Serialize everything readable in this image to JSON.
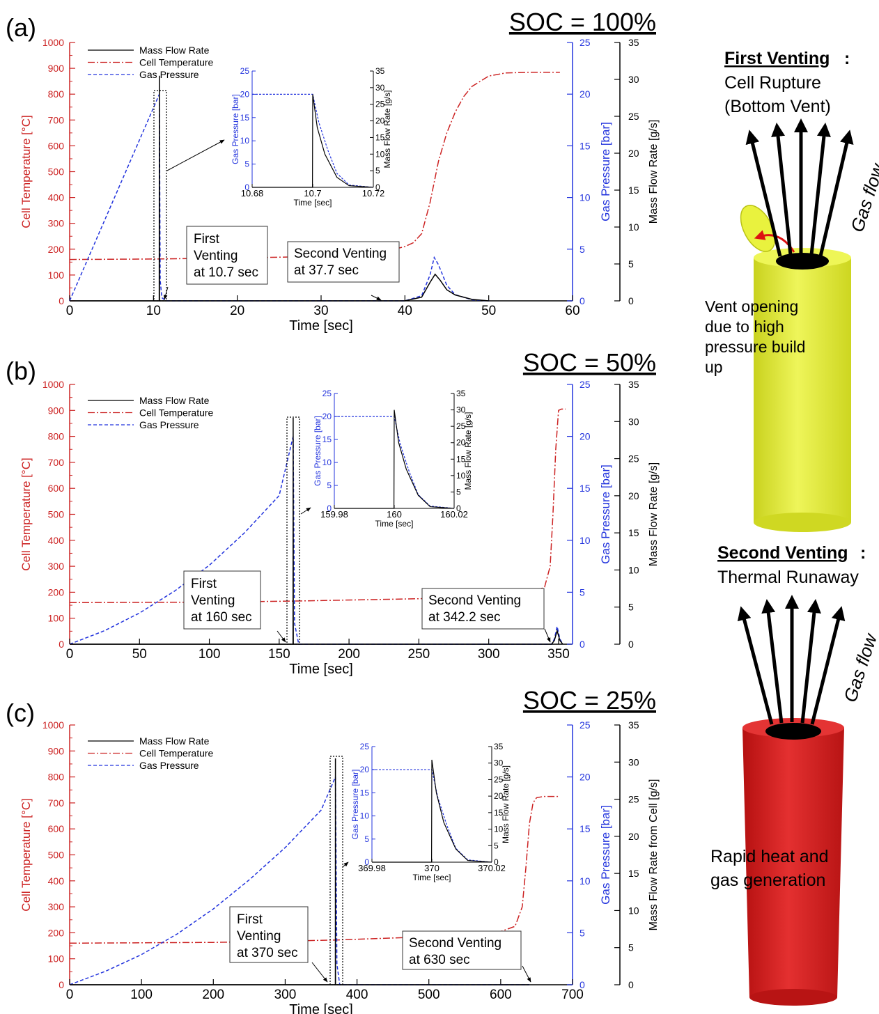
{
  "panels": [
    {
      "tag": "(a)",
      "soc": "SOC = 100%",
      "xlabel": "Time [sec]",
      "ylabel_temp": "Cell Temperature [°C]",
      "ylabel_press": "Gas Pressure [bar]",
      "ylabel_mfr": "Mass Flow Rate [g/s]",
      "legend": [
        "Mass Flow Rate",
        "Cell Temperature",
        "Gas Pressure"
      ],
      "first_venting": [
        "First",
        "Venting",
        "at 10.7 sec"
      ],
      "second_venting": [
        "Second Venting",
        "at 37.7 sec"
      ],
      "inset": {
        "xticks": [
          "10.68",
          "10.7",
          "10.72"
        ],
        "xlabel": "Time [sec]",
        "ylabel_press": "Gas Pressure [bar]",
        "ylabel_mfr": "Mass Flow Rate [g/s]"
      }
    },
    {
      "tag": "(b)",
      "soc": "SOC = 50%",
      "xlabel": "Time [sec]",
      "ylabel_temp": "Cell Temperature [°C]",
      "ylabel_press": "Gas Pressure [bar]",
      "ylabel_mfr": "Mass Flow Rate [g/s]",
      "legend": [
        "Mass Flow Rate",
        "Cell Temperature",
        "Gas Pressure"
      ],
      "first_venting": [
        "First",
        "Venting",
        "at 160 sec"
      ],
      "second_venting": [
        "Second Venting",
        "at 342.2 sec"
      ],
      "inset": {
        "xticks": [
          "159.98",
          "160",
          "160.02"
        ],
        "xlabel": "Time [sec]",
        "ylabel_press": "Gas Pressure [bar]",
        "ylabel_mfr": "Mass Flow Rate [g/s]"
      }
    },
    {
      "tag": "(c)",
      "soc": "SOC = 25%",
      "xlabel": "Time [sec]",
      "ylabel_temp": "Cell Temperature [°C]",
      "ylabel_press": "Gas Pressure [bar]",
      "ylabel_mfr": "Mass Flow Rate from Cell [g/s]",
      "legend": [
        "Mass Flow Rate",
        "Cell Temperature",
        "Gas Pressure"
      ],
      "first_venting": [
        "First",
        "Venting",
        "at 370 sec"
      ],
      "second_venting": [
        "Second Venting",
        "at 630 sec"
      ],
      "inset": {
        "xticks": [
          "369.98",
          "370",
          "370.02"
        ],
        "xlabel": "Time [sec]",
        "ylabel_press": "Gas Pressure [bar]",
        "ylabel_mfr": "Mass Flow Rate [g/s]"
      }
    }
  ],
  "schematic": {
    "first_title": "First Venting",
    "first_colon": ":",
    "first_sub": [
      "Cell Rupture",
      "(Bottom Vent)"
    ],
    "gas_flow": "Gas flow",
    "vent_note": [
      "Vent opening",
      "due to high",
      "pressure build",
      "up"
    ],
    "second_title": "Second Venting",
    "second_colon": ":",
    "second_sub": "Thermal Runaway",
    "heat_note": [
      "Rapid heat and",
      "gas generation"
    ],
    "colors": {
      "cell_yellow": "#e4ee2c",
      "cell_red": "#dd1c1c"
    }
  },
  "chart_data": [
    {
      "type": "line",
      "title": "SOC = 100%",
      "xlabel": "Time [sec]",
      "xlim": [
        0,
        60
      ],
      "xticks": [
        0,
        10,
        20,
        30,
        40,
        50,
        60
      ],
      "axes": {
        "temperature": {
          "label": "Cell Temperature [°C]",
          "lim": [
            0,
            1000
          ],
          "color": "#cc2222"
        },
        "pressure": {
          "label": "Gas Pressure [bar]",
          "lim": [
            0,
            25
          ],
          "color": "#2233dd"
        },
        "mass_flow": {
          "label": "Mass Flow Rate [g/s]",
          "lim": [
            0,
            35
          ],
          "color": "#000000"
        }
      },
      "legend_position": "top-left",
      "series": [
        {
          "name": "Cell Temperature",
          "axis": "temperature",
          "style": "dash-dot",
          "color": "#cc2222",
          "x": [
            0,
            10,
            20,
            30,
            38,
            40,
            41,
            42,
            43,
            44,
            45,
            46,
            47,
            48,
            50,
            52,
            55,
            58.5
          ],
          "y": [
            160,
            162,
            166,
            172,
            195,
            210,
            225,
            260,
            380,
            540,
            650,
            730,
            790,
            830,
            870,
            882,
            885,
            885
          ]
        },
        {
          "name": "Gas Pressure",
          "axis": "pressure",
          "style": "dashed",
          "color": "#2233dd",
          "x": [
            0,
            10.7,
            10.7,
            10.8,
            11,
            11.5,
            40,
            42,
            43,
            43.5,
            44,
            45,
            46,
            48,
            50
          ],
          "y": [
            0,
            20,
            20,
            2,
            0.3,
            0,
            0,
            0.5,
            2.5,
            4.2,
            3.5,
            1.5,
            0.6,
            0.1,
            0
          ]
        },
        {
          "name": "Mass Flow Rate",
          "axis": "mass_flow",
          "style": "solid",
          "color": "#000000",
          "x": [
            0,
            10.69,
            10.7,
            10.72,
            10.8,
            40,
            42,
            43,
            43.6,
            44.2,
            45,
            46,
            48,
            50
          ],
          "y": [
            0,
            0,
            30.5,
            0,
            0,
            0,
            0.5,
            2.5,
            3.6,
            2.8,
            1.5,
            0.8,
            0.2,
            0
          ]
        }
      ],
      "annotations": [
        "First Venting at 10.7 sec",
        "Second Venting at 37.7 sec"
      ],
      "inset": {
        "xlim": [
          10.68,
          10.72
        ],
        "xticks": [
          10.68,
          10.7,
          10.72
        ],
        "pressure_lim": [
          0,
          25
        ],
        "mass_flow_lim": [
          0,
          35
        ],
        "pressure": {
          "x": [
            10.68,
            10.7,
            10.7,
            10.702,
            10.705,
            10.708,
            10.712,
            10.72
          ],
          "y": [
            20,
            20,
            20,
            14,
            8,
            3,
            0.5,
            0
          ]
        },
        "mass_flow": {
          "x": [
            10.68,
            10.6999,
            10.7,
            10.7015,
            10.704,
            10.708,
            10.712,
            10.72
          ],
          "y": [
            0,
            0,
            28,
            18,
            10,
            3,
            0.5,
            0
          ]
        }
      }
    },
    {
      "type": "line",
      "title": "SOC = 50%",
      "xlabel": "Time [sec]",
      "xlim": [
        0,
        360
      ],
      "xticks": [
        0,
        50,
        100,
        150,
        200,
        250,
        300,
        350
      ],
      "axes": {
        "temperature": {
          "label": "Cell Temperature [°C]",
          "lim": [
            0,
            1000
          ],
          "color": "#cc2222"
        },
        "pressure": {
          "label": "Gas Pressure [bar]",
          "lim": [
            0,
            25
          ],
          "color": "#2233dd"
        },
        "mass_flow": {
          "label": "Mass Flow Rate [g/s]",
          "lim": [
            0,
            35
          ],
          "color": "#000000"
        }
      },
      "legend_position": "top-left",
      "series": [
        {
          "name": "Cell Temperature",
          "axis": "temperature",
          "style": "dash-dot",
          "color": "#cc2222",
          "x": [
            0,
            100,
            160,
            250,
            330,
            340,
            344,
            346,
            348,
            350,
            352,
            355
          ],
          "y": [
            160,
            162,
            166,
            175,
            195,
            220,
            300,
            500,
            750,
            900,
            905,
            905
          ]
        },
        {
          "name": "Gas Pressure",
          "axis": "pressure",
          "style": "dashed",
          "color": "#2233dd",
          "x": [
            0,
            25,
            50,
            75,
            100,
            125,
            150,
            160,
            160,
            161,
            164,
            345,
            347,
            349,
            351,
            353
          ],
          "y": [
            0,
            1.3,
            3.0,
            5.1,
            7.6,
            10.7,
            14.3,
            20,
            20,
            2,
            0,
            0,
            0.5,
            1.7,
            0.5,
            0
          ]
        },
        {
          "name": "Mass Flow Rate",
          "axis": "mass_flow",
          "style": "solid",
          "color": "#000000",
          "x": [
            0,
            159.9,
            160,
            160.1,
            161,
            345,
            347,
            349,
            351,
            353
          ],
          "y": [
            0,
            0,
            30.5,
            0,
            0,
            0,
            0.5,
            1.8,
            0.5,
            0
          ]
        }
      ],
      "annotations": [
        "First Venting at 160 sec",
        "Second Venting at 342.2 sec"
      ],
      "inset": {
        "xlim": [
          159.98,
          160.02
        ],
        "xticks": [
          159.98,
          160,
          160.02
        ],
        "pressure_lim": [
          0,
          25
        ],
        "mass_flow_lim": [
          0,
          35
        ],
        "pressure": {
          "x": [
            159.98,
            160,
            160,
            160.002,
            160.005,
            160.008,
            160.012,
            160.02
          ],
          "y": [
            20,
            20,
            20,
            14,
            8,
            3,
            0.5,
            0
          ]
        },
        "mass_flow": {
          "x": [
            159.98,
            159.9999,
            160,
            160.0015,
            160.004,
            160.008,
            160.012,
            160.02
          ],
          "y": [
            0,
            0,
            30,
            20,
            12,
            4,
            0.5,
            0
          ]
        }
      }
    },
    {
      "type": "line",
      "title": "SOC = 25%",
      "xlabel": "Time [sec]",
      "xlim": [
        0,
        700
      ],
      "xticks": [
        0,
        100,
        200,
        300,
        400,
        500,
        600,
        700
      ],
      "axes": {
        "temperature": {
          "label": "Cell Temperature [°C]",
          "lim": [
            0,
            1000
          ],
          "color": "#cc2222"
        },
        "pressure": {
          "label": "Gas Pressure [bar]",
          "lim": [
            0,
            25
          ],
          "color": "#2233dd"
        },
        "mass_flow": {
          "label": "Mass Flow Rate from Cell [g/s]",
          "lim": [
            0,
            35
          ],
          "color": "#000000"
        }
      },
      "legend_position": "top-left",
      "series": [
        {
          "name": "Cell Temperature",
          "axis": "temperature",
          "style": "dash-dot",
          "color": "#cc2222",
          "x": [
            0,
            200,
            370,
            500,
            600,
            620,
            630,
            635,
            640,
            645,
            650,
            660,
            680
          ],
          "y": [
            160,
            163,
            172,
            185,
            205,
            225,
            300,
            450,
            620,
            700,
            720,
            725,
            725
          ]
        },
        {
          "name": "Gas Pressure",
          "axis": "pressure",
          "style": "dashed",
          "color": "#2233dd",
          "x": [
            0,
            50,
            100,
            150,
            200,
            250,
            300,
            350,
            370,
            370,
            372,
            376,
            640
          ],
          "y": [
            0,
            1.3,
            2.9,
            4.9,
            7.3,
            10.1,
            13.2,
            16.8,
            20,
            20,
            2,
            0,
            0
          ]
        },
        {
          "name": "Mass Flow Rate",
          "axis": "mass_flow",
          "style": "solid",
          "color": "#000000",
          "x": [
            0,
            369.9,
            370,
            370.1,
            372,
            640
          ],
          "y": [
            0,
            0,
            30.5,
            0,
            0,
            0
          ]
        }
      ],
      "annotations": [
        "First Venting at 370 sec",
        "Second Venting at 630 sec"
      ],
      "inset": {
        "xlim": [
          369.98,
          370.02
        ],
        "xticks": [
          369.98,
          370,
          370.02
        ],
        "pressure_lim": [
          0,
          25
        ],
        "mass_flow_lim": [
          0,
          35
        ],
        "pressure": {
          "x": [
            369.98,
            370,
            370,
            370.002,
            370.005,
            370.008,
            370.012,
            370.02
          ],
          "y": [
            20,
            20,
            20,
            14,
            8,
            3,
            0.5,
            0
          ]
        },
        "mass_flow": {
          "x": [
            369.98,
            369.9999,
            370,
            370.0015,
            370.004,
            370.008,
            370.012,
            370.02
          ],
          "y": [
            0,
            0,
            31,
            21,
            12,
            4,
            0.5,
            0
          ]
        }
      }
    }
  ]
}
